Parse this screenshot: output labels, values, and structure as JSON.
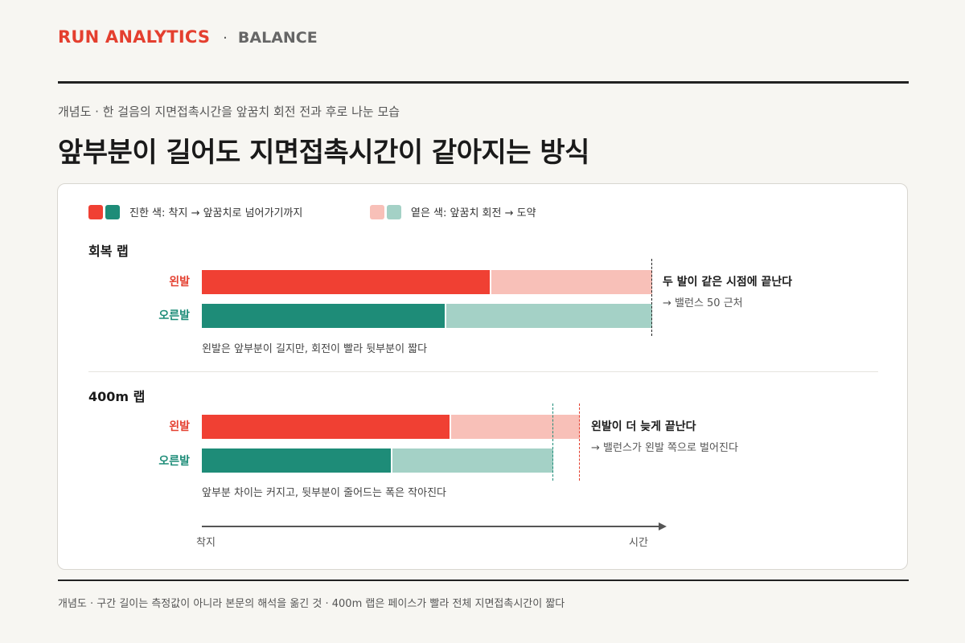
{
  "brand": {
    "main": "RUN ANALYTICS",
    "separator": "·",
    "section": "BALANCE"
  },
  "subtitle": "개념도 · 한 걸음의 지면접촉시간을 앞꿈치 회전 전과 후로 나눈 모습",
  "title": "앞부분이 길어도 지면접촉시간이 같아지는 방식",
  "legend": {
    "dark": {
      "label": "진한 색: 착지 → 앞꿈치로 넘어가기까지",
      "colors": [
        "#f04033",
        "#1e8c78"
      ]
    },
    "light": {
      "label": "옅은 색: 앞꿈치 회전 → 도약",
      "colors": [
        "#f8c0b8",
        "#a4d1c6"
      ]
    }
  },
  "colors": {
    "left_stance": "#f04033",
    "left_flight": "#f8c0b8",
    "right_stance": "#1e8c78",
    "right_flight": "#a4d1c6",
    "accent_red": "#e43f2f",
    "accent_green": "#1d8c78"
  },
  "sections": [
    {
      "title": "회복 랩",
      "rows": [
        {
          "label": "왼발",
          "side": "left",
          "stance": 0.64,
          "total": 1.0
        },
        {
          "label": "오른발",
          "side": "right",
          "stance": 0.54,
          "total": 1.0
        }
      ],
      "note": "왼발은 앞부분이 길지만, 회전이 빨라 뒷부분이 짧다",
      "callout": {
        "head": "두 발이 같은 시점에 끝난다",
        "sub": "→ 밸런스 50 근처"
      }
    },
    {
      "title": "400m 랩",
      "rows": [
        {
          "label": "왼발",
          "side": "left",
          "stance": 0.55,
          "total": 0.84
        },
        {
          "label": "오른발",
          "side": "right",
          "stance": 0.42,
          "total": 0.78
        }
      ],
      "note": "앞부분 차이는 커지고, 뒷부분이 줄어드는 폭은 작아진다",
      "callout": {
        "head": "왼발이 더 늦게 끝난다",
        "sub": "→ 밸런스가 왼발 쪽으로 벌어진다"
      }
    }
  ],
  "axis": {
    "start": "착지",
    "end": "시간"
  },
  "footer": "개념도 · 구간 길이는 측정값이 아니라 본문의 해석을 옮긴 것 · 400m 랩은 페이스가 빨라 전체 지면접촉시간이 짧다"
}
